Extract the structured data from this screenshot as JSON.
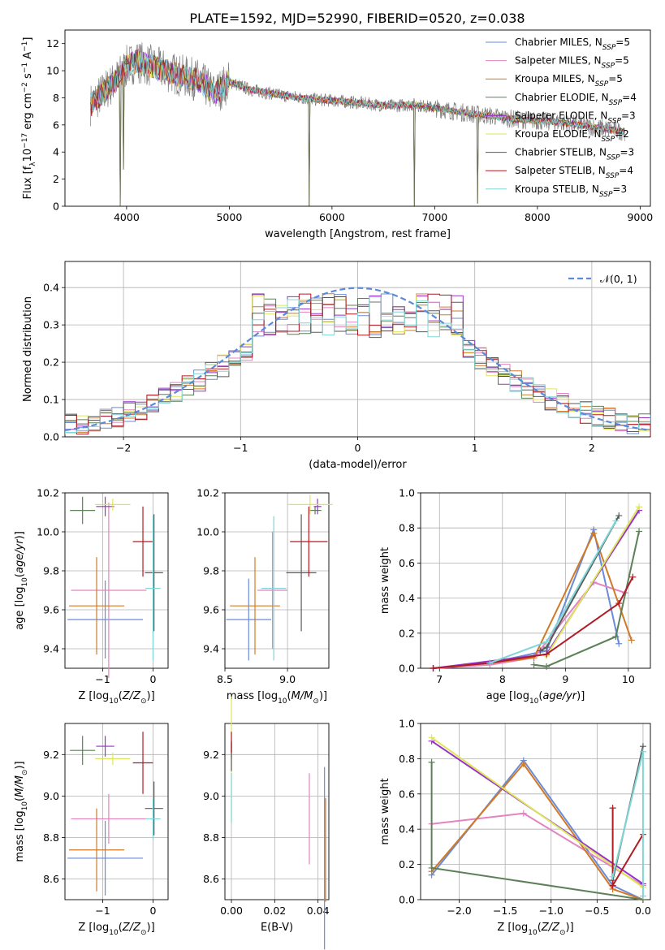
{
  "figure_title": "PLATE=1592, MJD=52990, FIBERID=0520, z=0.038",
  "series_colors": [
    "#6a8bd7",
    "#e383c0",
    "#d07a27",
    "#5c8058",
    "#9a32c8",
    "#dde65a",
    "#5a5a5a",
    "#b01c24",
    "#7fd6d6"
  ],
  "legend_labels": [
    "Chabrier MILES, N",
    "Salpeter MILES, N",
    "Kroupa MILES, N",
    "Chabrier ELODIE, N",
    "Salpeter ELODIE, N",
    "Kroupa ELODIE, N",
    "Chabrier STELIB, N",
    "Salpeter STELIB, N",
    "Kroupa STELIB, N"
  ],
  "legend_sub": "SSP",
  "legend_counts": [
    "=5",
    "=5",
    "=5",
    "=4",
    "=3",
    "=2",
    "=3",
    "=4",
    "=3"
  ],
  "chart_data": [
    {
      "id": "spectrum",
      "type": "line",
      "title": "PLATE=1592, MJD=52990, FIBERID=0520, z=0.038",
      "xlabel": "wavelength [Angstrom, rest frame]",
      "ylabel": "Flux [f_λ 10^-17 erg cm^-2 s^-1 A^-1]",
      "xlim": [
        3400,
        9100
      ],
      "ylim": [
        0,
        13
      ],
      "xticks": [
        4000,
        5000,
        6000,
        7000,
        8000,
        9000
      ],
      "yticks": [
        0,
        2,
        4,
        6,
        8,
        10,
        12
      ],
      "grid": false,
      "legend": "upper-right",
      "data_points": [
        [
          3650,
          7.5
        ],
        [
          3800,
          8.6
        ],
        [
          3900,
          9.3
        ],
        [
          4000,
          10.3
        ],
        [
          4100,
          10.7
        ],
        [
          4300,
          10.2
        ],
        [
          4500,
          9.7
        ],
        [
          4700,
          9.3
        ],
        [
          4860,
          8.3
        ],
        [
          5000,
          9.2
        ],
        [
          5200,
          8.6
        ],
        [
          5500,
          8.2
        ],
        [
          5800,
          7.9
        ],
        [
          6000,
          7.8
        ],
        [
          6300,
          7.6
        ],
        [
          6560,
          7.4
        ],
        [
          6800,
          7.5
        ],
        [
          7200,
          7.0
        ],
        [
          7500,
          6.7
        ],
        [
          7800,
          6.4
        ],
        [
          8200,
          6.2
        ],
        [
          8500,
          5.9
        ],
        [
          8850,
          5.5
        ]
      ],
      "dips": [
        [
          3935,
          0
        ],
        [
          3968,
          2.7
        ],
        [
          5780,
          0
        ],
        [
          6800,
          0
        ],
        [
          7420,
          0.2
        ]
      ]
    },
    {
      "id": "residuals",
      "type": "line",
      "xlabel": "(data-model)/error",
      "ylabel": "Normed distribution",
      "xlim": [
        -2.5,
        2.5
      ],
      "ylim": [
        0,
        0.47
      ],
      "xticks": [
        -2,
        -1,
        0,
        1,
        2
      ],
      "yticks": [
        0,
        0.1,
        0.2,
        0.3,
        0.4
      ],
      "grid": true,
      "legend": "upper-right",
      "normal_label": "𝒩(0, 1)",
      "note": "step histograms of residuals for each fit, with reference curve N(0,1)"
    },
    {
      "id": "age_vs_Z",
      "type": "scatter",
      "xlabel": "Z [log10(Z/Z⊙)]",
      "ylabel": "age  [log10(age/yr)]",
      "xlim": [
        -1.75,
        0.3
      ],
      "ylim": [
        9.3,
        10.2
      ],
      "xticks": [
        -1,
        0
      ],
      "yticks": [
        9.4,
        9.6,
        9.8,
        10.0,
        10.2
      ],
      "grid": true,
      "points": [
        {
          "x": -0.95,
          "y": 9.55,
          "xerr": 0.75,
          "yerr": 0.2
        },
        {
          "x": -0.88,
          "y": 9.7,
          "xerr": 0.75,
          "yerr": 0.45
        },
        {
          "x": -1.12,
          "y": 9.62,
          "xerr": 0.55,
          "yerr": 0.25
        },
        {
          "x": -1.4,
          "y": 10.11,
          "xerr": 0.25,
          "yerr": 0.07
        },
        {
          "x": -0.95,
          "y": 10.13,
          "xerr": 0.18,
          "yerr": 0.05
        },
        {
          "x": -0.8,
          "y": 10.14,
          "xerr": 0.35,
          "yerr": 0.03
        },
        {
          "x": 0.02,
          "y": 9.79,
          "xerr": 0.18,
          "yerr": 0.3
        },
        {
          "x": -0.2,
          "y": 9.95,
          "xerr": 0.2,
          "yerr": 0.18
        },
        {
          "x": 0.0,
          "y": 9.71,
          "xerr": 0.15,
          "yerr": 0.37
        }
      ]
    },
    {
      "id": "age_vs_mass",
      "type": "scatter",
      "xlabel": "mass [log10(M/M⊙)]",
      "ylabel": "",
      "xlim": [
        8.5,
        9.33
      ],
      "ylim": [
        9.3,
        10.2
      ],
      "xticks": [
        8.5,
        9.0
      ],
      "yticks": [
        9.4,
        9.6,
        9.8,
        10.0,
        10.2
      ],
      "grid": true,
      "points": [
        {
          "x": 8.69,
          "y": 9.55,
          "xerr": 0.18,
          "yerr": 0.21
        },
        {
          "x": 8.88,
          "y": 9.7,
          "xerr": 0.12,
          "yerr": 0.3
        },
        {
          "x": 8.74,
          "y": 9.62,
          "xerr": 0.2,
          "yerr": 0.25
        },
        {
          "x": 9.22,
          "y": 10.11,
          "xerr": 0.05,
          "yerr": 0.02
        },
        {
          "x": 9.24,
          "y": 10.13,
          "xerr": 0.03,
          "yerr": 0.04
        },
        {
          "x": 9.18,
          "y": 10.14,
          "xerr": 0.18,
          "yerr": 0.05
        },
        {
          "x": 9.11,
          "y": 9.79,
          "xerr": 0.12,
          "yerr": 0.3
        },
        {
          "x": 9.17,
          "y": 9.95,
          "xerr": 0.15,
          "yerr": 0.18
        },
        {
          "x": 8.89,
          "y": 9.71,
          "xerr": 0.1,
          "yerr": 0.37
        }
      ]
    },
    {
      "id": "massweight_vs_age",
      "type": "line",
      "xlabel": "age  [log10(age/yr)]",
      "ylabel": "mass weight",
      "xlim": [
        6.7,
        10.35
      ],
      "ylim": [
        0,
        1.0
      ],
      "xticks": [
        7,
        8,
        9,
        10
      ],
      "yticks": [
        0.0,
        0.2,
        0.4,
        0.6,
        0.8,
        1.0
      ],
      "grid": true,
      "series": [
        {
          "values": [
            [
              6.9,
              0.0
            ],
            [
              7.8,
              0.03
            ],
            [
              8.7,
              0.1
            ],
            [
              9.45,
              0.79
            ],
            [
              9.85,
              0.14
            ]
          ]
        },
        {
          "values": [
            [
              6.9,
              0.0
            ],
            [
              7.8,
              0.02
            ],
            [
              8.5,
              0.06
            ],
            [
              9.45,
              0.49
            ],
            [
              9.95,
              0.43
            ]
          ]
        },
        {
          "values": [
            [
              6.9,
              0.0
            ],
            [
              7.8,
              0.03
            ],
            [
              8.5,
              0.06
            ],
            [
              9.45,
              0.77
            ],
            [
              10.05,
              0.16
            ]
          ]
        },
        {
          "values": [
            [
              8.5,
              0.02
            ],
            [
              8.7,
              0.01
            ],
            [
              9.8,
              0.18
            ],
            [
              10.17,
              0.78
            ]
          ]
        },
        {
          "values": [
            [
              6.9,
              0.0
            ],
            [
              8.7,
              0.08
            ],
            [
              10.17,
              0.9
            ]
          ]
        },
        {
          "values": [
            [
              8.7,
              0.07
            ],
            [
              10.17,
              0.92
            ]
          ]
        },
        {
          "values": [
            [
              8.6,
              0.1
            ],
            [
              8.7,
              0.12
            ],
            [
              9.85,
              0.87
            ]
          ]
        },
        {
          "values": [
            [
              6.9,
              0.0
            ],
            [
              7.8,
              0.03
            ],
            [
              8.7,
              0.08
            ],
            [
              9.85,
              0.37
            ],
            [
              10.07,
              0.52
            ]
          ]
        },
        {
          "values": [
            [
              7.8,
              0.03
            ],
            [
              8.7,
              0.15
            ],
            [
              9.8,
              0.84
            ]
          ]
        }
      ]
    },
    {
      "id": "mass_vs_Z",
      "type": "scatter",
      "xlabel": "Z [log10(Z/Z⊙)]",
      "ylabel": "mass [log10(M/M⊙)]",
      "xlim": [
        -1.75,
        0.3
      ],
      "ylim": [
        8.5,
        9.35
      ],
      "xticks": [
        -1,
        0
      ],
      "yticks": [
        8.6,
        8.8,
        9.0,
        9.2
      ],
      "grid": true,
      "points": [
        {
          "x": -0.95,
          "y": 8.7,
          "xerr": 0.75,
          "yerr": 0.18
        },
        {
          "x": -0.88,
          "y": 8.89,
          "xerr": 0.75,
          "yerr": 0.12
        },
        {
          "x": -1.12,
          "y": 8.74,
          "xerr": 0.55,
          "yerr": 0.2
        },
        {
          "x": -1.4,
          "y": 9.22,
          "xerr": 0.25,
          "yerr": 0.07
        },
        {
          "x": -0.95,
          "y": 9.24,
          "xerr": 0.18,
          "yerr": 0.05
        },
        {
          "x": -0.8,
          "y": 9.18,
          "xerr": 0.35,
          "yerr": 0.03
        },
        {
          "x": 0.02,
          "y": 8.94,
          "xerr": 0.18,
          "yerr": 0.13
        },
        {
          "x": -0.2,
          "y": 9.16,
          "xerr": 0.2,
          "yerr": 0.15
        },
        {
          "x": 0.0,
          "y": 8.89,
          "xerr": 0.15,
          "yerr": 0.1
        }
      ]
    },
    {
      "id": "mass_vs_ebv",
      "type": "scatter",
      "xlabel": "E(B-V)",
      "ylabel": "",
      "xlim": [
        -0.003,
        0.045
      ],
      "ylim": [
        8.5,
        9.35
      ],
      "xticks": [
        0.0,
        0.02,
        0.04
      ],
      "yticks": [
        8.6,
        8.8,
        9.0,
        9.2
      ],
      "grid": true,
      "points": [
        {
          "x": 0.043,
          "y": 8.7,
          "xerr": 0,
          "yerr": 0.44
        },
        {
          "x": 0.036,
          "y": 8.89,
          "xerr": 0,
          "yerr": 0.22
        },
        {
          "x": 0.0435,
          "y": 8.74,
          "xerr": 0,
          "yerr": 0.25
        },
        {
          "x": 0.0,
          "y": 9.22,
          "xerr": 0,
          "yerr": 0.04
        },
        {
          "x": 0.0,
          "y": 9.24,
          "xerr": 0,
          "yerr": 0.03
        },
        {
          "x": 0.0,
          "y": 9.18,
          "xerr": 0,
          "yerr": 0.3
        },
        {
          "x": 0.0,
          "y": 9.19,
          "xerr": 0,
          "yerr": 0.07
        },
        {
          "x": 0.0,
          "y": 9.26,
          "xerr": 0,
          "yerr": 0.05
        },
        {
          "x": 0.0,
          "y": 8.99,
          "xerr": 0,
          "yerr": 0.12
        }
      ]
    },
    {
      "id": "massweight_vs_Z",
      "type": "line",
      "xlabel": "Z [log10(Z/Z⊙)]",
      "ylabel": "mass weight",
      "xlim": [
        -2.42,
        0.08
      ],
      "ylim": [
        0,
        1.0
      ],
      "xticks": [
        -2.0,
        -1.5,
        -1.0,
        -0.5,
        0.0
      ],
      "yticks": [
        0.0,
        0.2,
        0.4,
        0.6,
        0.8,
        1.0
      ],
      "grid": true,
      "series": [
        {
          "values": [
            [
              -2.3,
              0.14
            ],
            [
              -1.3,
              0.79
            ],
            [
              -0.33,
              0.08
            ],
            [
              0.0,
              0.0
            ]
          ]
        },
        {
          "values": [
            [
              -2.3,
              0.43
            ],
            [
              -1.3,
              0.49
            ],
            [
              0.0,
              0.08
            ]
          ]
        },
        {
          "values": [
            [
              -2.3,
              0.16
            ],
            [
              -1.3,
              0.77
            ],
            [
              -0.33,
              0.06
            ],
            [
              0.0,
              0.0
            ]
          ]
        },
        {
          "values": [
            [
              -2.3,
              0.78
            ],
            [
              -2.3,
              0.18
            ],
            [
              0.0,
              0.0
            ]
          ]
        },
        {
          "values": [
            [
              -2.3,
              0.9
            ],
            [
              0.0,
              0.09
            ]
          ]
        },
        {
          "values": [
            [
              -2.3,
              0.92
            ],
            [
              0.0,
              0.07
            ]
          ]
        },
        {
          "values": [
            [
              -0.33,
              0.11
            ],
            [
              0.0,
              0.87
            ]
          ]
        },
        {
          "values": [
            [
              -0.33,
              0.52
            ],
            [
              -0.33,
              0.08
            ],
            [
              0.0,
              0.37
            ]
          ]
        },
        {
          "values": [
            [
              -0.33,
              0.13
            ],
            [
              0.0,
              0.84
            ],
            [
              0.0,
              0.02
            ]
          ]
        }
      ]
    }
  ]
}
